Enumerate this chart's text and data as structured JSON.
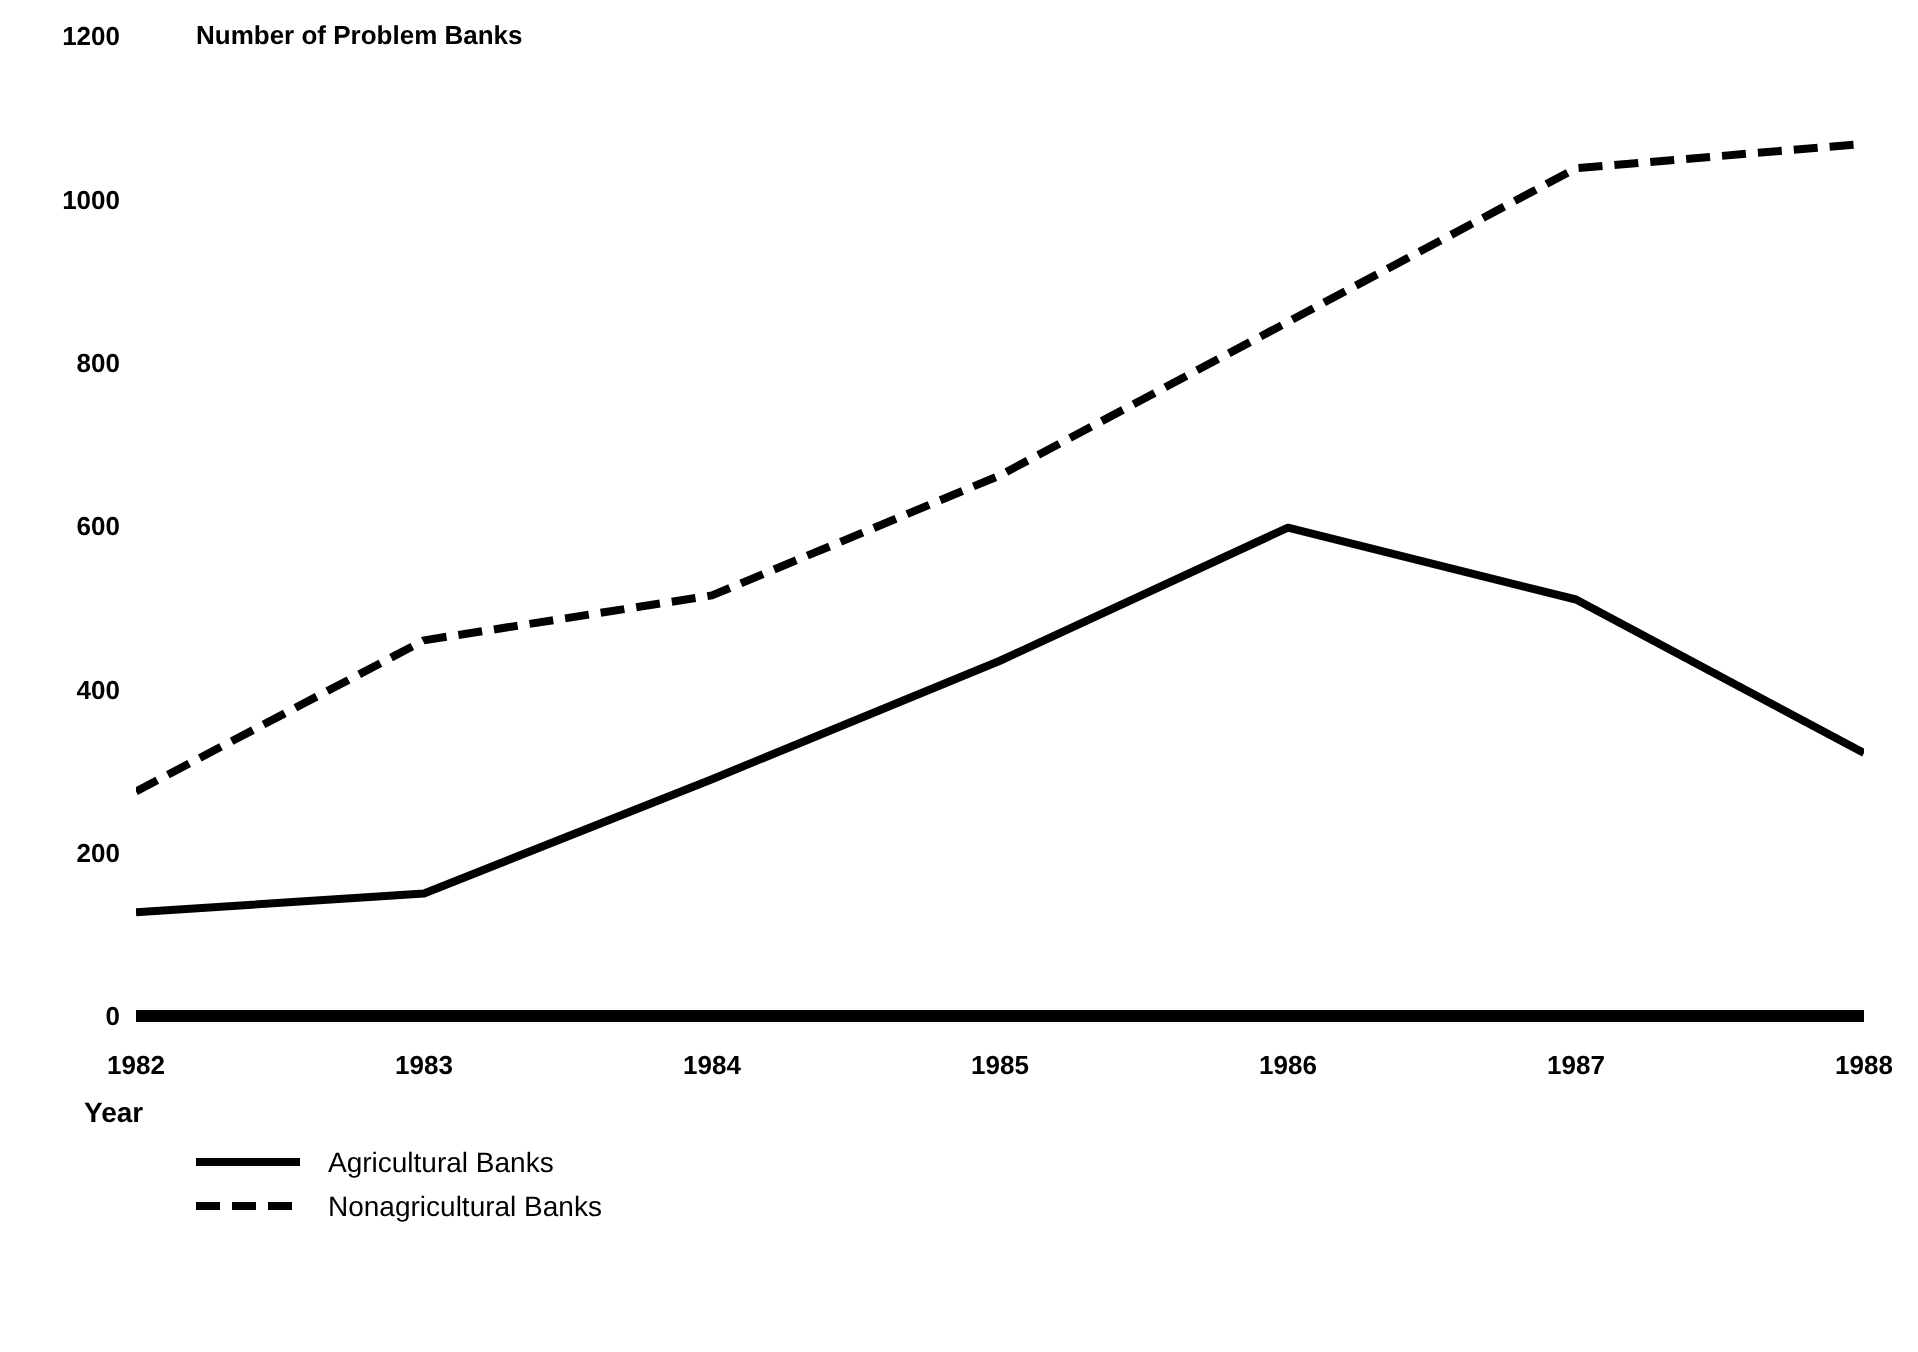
{
  "chart_data": {
    "type": "line",
    "ylabel": "Number of Problem Banks",
    "xlabel": "Year",
    "x": [
      1982,
      1983,
      1984,
      1985,
      1986,
      1987,
      1988
    ],
    "series": [
      {
        "name": "Agricultural Banks",
        "color": "#000000",
        "line_style": "solid",
        "values": [
          127,
          150,
          290,
          435,
          598,
          510,
          322
        ]
      },
      {
        "name": "Nonagricultural Banks",
        "color": "#000000",
        "line_style": "dashed",
        "values": [
          275,
          460,
          515,
          662,
          850,
          1038,
          1068
        ]
      }
    ],
    "xlim": [
      1982,
      1988
    ],
    "xticks": [
      1982,
      1983,
      1984,
      1985,
      1986,
      1987,
      1988
    ],
    "ylim": [
      0,
      1200
    ],
    "yticks": [
      0,
      200,
      400,
      600,
      800,
      1000,
      1200
    ],
    "grid": false,
    "legend": "bottom left",
    "marker": "none"
  }
}
